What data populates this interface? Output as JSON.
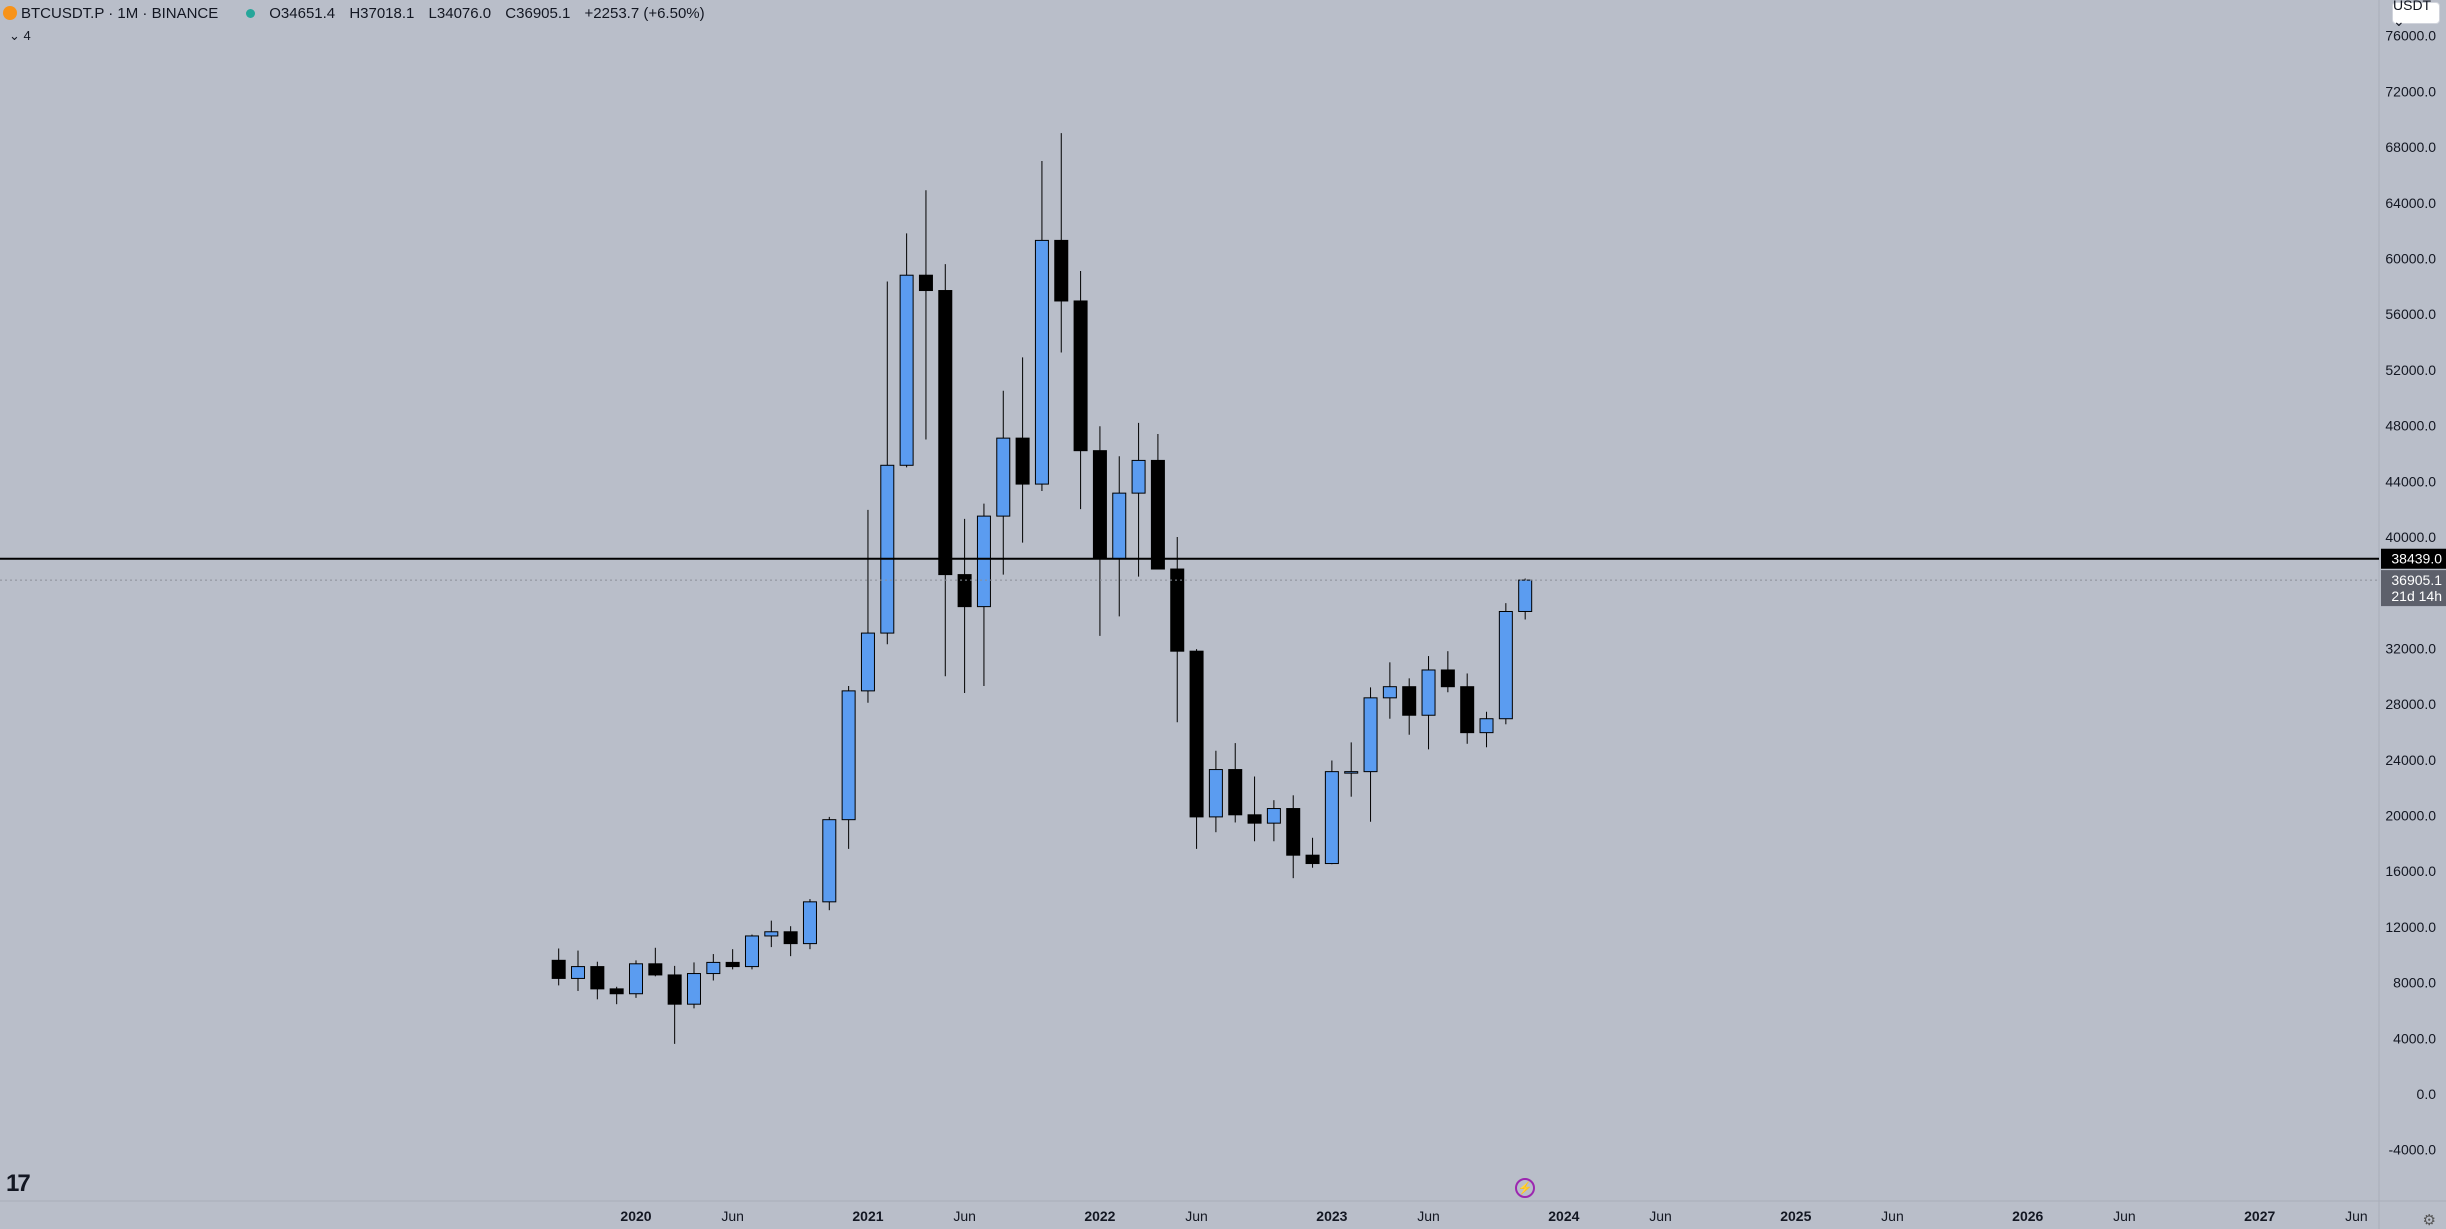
{
  "header": {
    "symbol": "BTCUSDT.P · 1M · BINANCE",
    "open": "O34651.4",
    "high": "H37018.1",
    "low": "L34076.0",
    "close": "C36905.1",
    "change": "+2253.7 (+6.50%)",
    "indicator_toggle": "⌄ 4"
  },
  "currency_button": "USDT ⌄",
  "colors": {
    "up": "#5b9cf0",
    "down": "#000000",
    "background": "#b9bec9",
    "hline": "#000000"
  },
  "icons": [
    "bitcoin-logo-icon",
    "live-dot-icon",
    "tradingview-logo-icon",
    "lightning-icon",
    "settings-gear-icon"
  ],
  "chart_data": {
    "type": "candlestick",
    "title": "BTCUSDT.P · 1M · BINANCE",
    "ylim": [
      -6000,
      77000
    ],
    "y_ticks": [
      76000,
      72000,
      68000,
      64000,
      60000,
      56000,
      52000,
      48000,
      44000,
      40000,
      32000,
      28000,
      24000,
      20000,
      16000,
      12000,
      8000,
      4000,
      0,
      -4000
    ],
    "y_tick_labels": [
      "76000.0",
      "72000.0",
      "68000.0",
      "64000.0",
      "60000.0",
      "56000.0",
      "52000.0",
      "48000.0",
      "44000.0",
      "40000.0",
      "32000.0",
      "28000.0",
      "24000.0",
      "20000.0",
      "16000.0",
      "12000.0",
      "8000.0",
      "4000.0",
      "0.0",
      "-4000.0"
    ],
    "x_axis_labels": [
      {
        "label": "2020",
        "month": "2020-01",
        "bold": true
      },
      {
        "label": "Jun",
        "month": "2020-06",
        "bold": false
      },
      {
        "label": "2021",
        "month": "2021-01",
        "bold": true
      },
      {
        "label": "Jun",
        "month": "2021-06",
        "bold": false
      },
      {
        "label": "2022",
        "month": "2022-01",
        "bold": true
      },
      {
        "label": "Jun",
        "month": "2022-06",
        "bold": false
      },
      {
        "label": "2023",
        "month": "2023-01",
        "bold": true
      },
      {
        "label": "Jun",
        "month": "2023-06",
        "bold": false
      },
      {
        "label": "2024",
        "month": "2024-01",
        "bold": true
      },
      {
        "label": "Jun",
        "month": "2024-06",
        "bold": false
      },
      {
        "label": "2025",
        "month": "2025-01",
        "bold": true
      },
      {
        "label": "Jun",
        "month": "2025-06",
        "bold": false
      },
      {
        "label": "2026",
        "month": "2026-01",
        "bold": true
      },
      {
        "label": "Jun",
        "month": "2026-06",
        "bold": false
      },
      {
        "label": "2027",
        "month": "2027-01",
        "bold": true
      },
      {
        "label": "Jun",
        "month": "2027-06",
        "bold": false
      }
    ],
    "horizontal_line": {
      "value": 38439.0,
      "label": "38439.0"
    },
    "last_price": {
      "value": 36905.1,
      "label": "36905.1",
      "countdown": "21d 14h"
    },
    "candles": [
      {
        "t": "2019-09",
        "o": 9600,
        "h": 10450,
        "l": 7800,
        "c": 8300
      },
      {
        "t": "2019-10",
        "o": 8300,
        "h": 10300,
        "l": 7400,
        "c": 9150
      },
      {
        "t": "2019-11",
        "o": 9150,
        "h": 9500,
        "l": 6800,
        "c": 7550
      },
      {
        "t": "2019-12",
        "o": 7550,
        "h": 7700,
        "l": 6450,
        "c": 7200
      },
      {
        "t": "2020-01",
        "o": 7200,
        "h": 9600,
        "l": 6900,
        "c": 9350
      },
      {
        "t": "2020-02",
        "o": 9350,
        "h": 10500,
        "l": 8450,
        "c": 8550
      },
      {
        "t": "2020-03",
        "o": 8550,
        "h": 9200,
        "l": 3600,
        "c": 6450
      },
      {
        "t": "2020-04",
        "o": 6450,
        "h": 9450,
        "l": 6150,
        "c": 8650
      },
      {
        "t": "2020-05",
        "o": 8650,
        "h": 10050,
        "l": 8150,
        "c": 9450
      },
      {
        "t": "2020-06",
        "o": 9450,
        "h": 10400,
        "l": 8950,
        "c": 9150
      },
      {
        "t": "2020-07",
        "o": 9150,
        "h": 11450,
        "l": 8950,
        "c": 11350
      },
      {
        "t": "2020-08",
        "o": 11350,
        "h": 12450,
        "l": 10550,
        "c": 11650
      },
      {
        "t": "2020-09",
        "o": 11650,
        "h": 12050,
        "l": 9900,
        "c": 10800
      },
      {
        "t": "2020-10",
        "o": 10800,
        "h": 14000,
        "l": 10400,
        "c": 13800
      },
      {
        "t": "2020-11",
        "o": 13800,
        "h": 19900,
        "l": 13200,
        "c": 19700
      },
      {
        "t": "2020-12",
        "o": 19700,
        "h": 29300,
        "l": 17600,
        "c": 28950
      },
      {
        "t": "2021-01",
        "o": 28950,
        "h": 41950,
        "l": 28100,
        "c": 33100
      },
      {
        "t": "2021-02",
        "o": 33100,
        "h": 58350,
        "l": 32300,
        "c": 45150
      },
      {
        "t": "2021-03",
        "o": 45150,
        "h": 61800,
        "l": 45000,
        "c": 58800
      },
      {
        "t": "2021-04",
        "o": 58800,
        "h": 64900,
        "l": 47000,
        "c": 57700
      },
      {
        "t": "2021-05",
        "o": 57700,
        "h": 59600,
        "l": 30000,
        "c": 37300
      },
      {
        "t": "2021-06",
        "o": 37300,
        "h": 41300,
        "l": 28800,
        "c": 35000
      },
      {
        "t": "2021-07",
        "o": 35000,
        "h": 42400,
        "l": 29300,
        "c": 41500
      },
      {
        "t": "2021-08",
        "o": 41500,
        "h": 50500,
        "l": 37300,
        "c": 47100
      },
      {
        "t": "2021-09",
        "o": 47100,
        "h": 52900,
        "l": 39600,
        "c": 43800
      },
      {
        "t": "2021-10",
        "o": 43800,
        "h": 67000,
        "l": 43300,
        "c": 61300
      },
      {
        "t": "2021-11",
        "o": 61300,
        "h": 69000,
        "l": 53250,
        "c": 56950
      },
      {
        "t": "2021-12",
        "o": 56950,
        "h": 59100,
        "l": 42000,
        "c": 46200
      },
      {
        "t": "2022-01",
        "o": 46200,
        "h": 47950,
        "l": 32900,
        "c": 38450
      },
      {
        "t": "2022-02",
        "o": 38450,
        "h": 45800,
        "l": 34300,
        "c": 43150
      },
      {
        "t": "2022-03",
        "o": 43150,
        "h": 48200,
        "l": 37150,
        "c": 45500
      },
      {
        "t": "2022-04",
        "o": 45500,
        "h": 47400,
        "l": 37700,
        "c": 37700
      },
      {
        "t": "2022-05",
        "o": 37700,
        "h": 40000,
        "l": 26700,
        "c": 31800
      },
      {
        "t": "2022-06",
        "o": 31800,
        "h": 31950,
        "l": 17600,
        "c": 19900
      },
      {
        "t": "2022-07",
        "o": 19900,
        "h": 24650,
        "l": 18800,
        "c": 23300
      },
      {
        "t": "2022-08",
        "o": 23300,
        "h": 25200,
        "l": 19500,
        "c": 20050
      },
      {
        "t": "2022-09",
        "o": 20050,
        "h": 22800,
        "l": 18150,
        "c": 19450
      },
      {
        "t": "2022-10",
        "o": 19450,
        "h": 21100,
        "l": 18150,
        "c": 20500
      },
      {
        "t": "2022-11",
        "o": 20500,
        "h": 21450,
        "l": 15500,
        "c": 17150
      },
      {
        "t": "2022-12",
        "o": 17150,
        "h": 18400,
        "l": 16250,
        "c": 16550
      },
      {
        "t": "2023-01",
        "o": 16550,
        "h": 23950,
        "l": 16500,
        "c": 23150
      },
      {
        "t": "2023-02",
        "o": 23150,
        "h": 25250,
        "l": 21350,
        "c": 23150
      },
      {
        "t": "2023-03",
        "o": 23150,
        "h": 29200,
        "l": 19550,
        "c": 28450
      },
      {
        "t": "2023-04",
        "o": 28450,
        "h": 31000,
        "l": 26950,
        "c": 29250
      },
      {
        "t": "2023-05",
        "o": 29250,
        "h": 29850,
        "l": 25800,
        "c": 27200
      },
      {
        "t": "2023-06",
        "o": 27200,
        "h": 31450,
        "l": 24750,
        "c": 30450
      },
      {
        "t": "2023-07",
        "o": 30450,
        "h": 31800,
        "l": 28850,
        "c": 29250
      },
      {
        "t": "2023-08",
        "o": 29250,
        "h": 30200,
        "l": 25150,
        "c": 25950
      },
      {
        "t": "2023-09",
        "o": 25950,
        "h": 27450,
        "l": 24900,
        "c": 26950
      },
      {
        "t": "2023-10",
        "o": 26950,
        "h": 35250,
        "l": 26550,
        "c": 34650
      },
      {
        "t": "2023-11",
        "o": 34651.4,
        "h": 37018.1,
        "l": 34076.0,
        "c": 36905.1
      }
    ]
  }
}
